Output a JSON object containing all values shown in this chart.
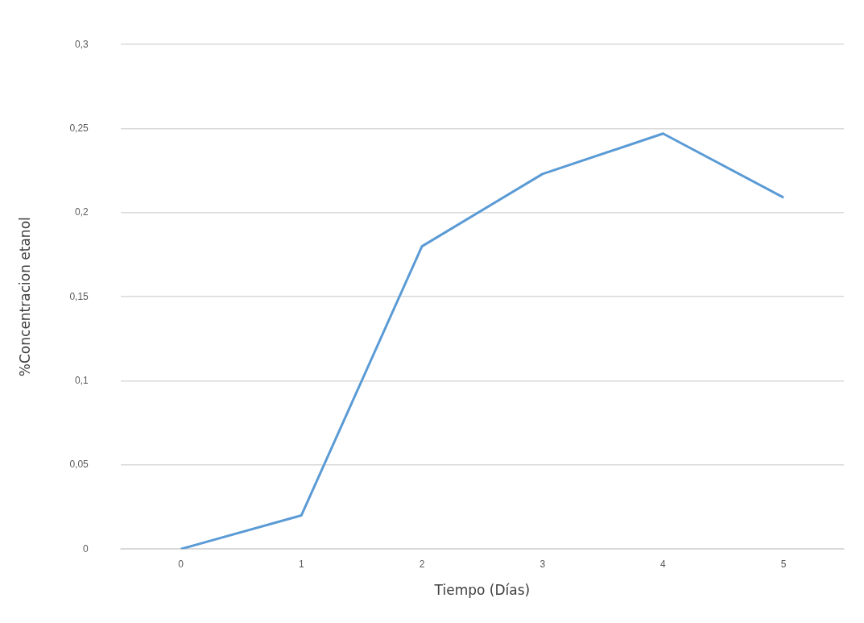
{
  "chart_data": {
    "type": "line",
    "xlabel": "Tiempo (Días)",
    "ylabel": "%Concentracion etanol",
    "categories": [
      "0",
      "1",
      "2",
      "3",
      "4",
      "5"
    ],
    "series": [
      {
        "color": "#5b9bd5",
        "values": [
          0,
          0.02,
          0.18,
          0.223,
          0.247,
          0.209
        ]
      }
    ],
    "ylim": [
      0,
      0.3
    ],
    "yticks": [
      0,
      {
        "value": 0.05,
        "label": "0,05"
      },
      {
        "value": 0.1,
        "label": "0,1"
      },
      {
        "value": 0.15,
        "label": "0,15"
      },
      {
        "value": 0.2,
        "label": "0,2"
      },
      {
        "value": 0.25,
        "label": "0,25"
      },
      {
        "value": 0.3,
        "label": "0,3"
      }
    ],
    "grid": "y",
    "legend": false,
    "marker": "none",
    "line_style": "solid"
  }
}
